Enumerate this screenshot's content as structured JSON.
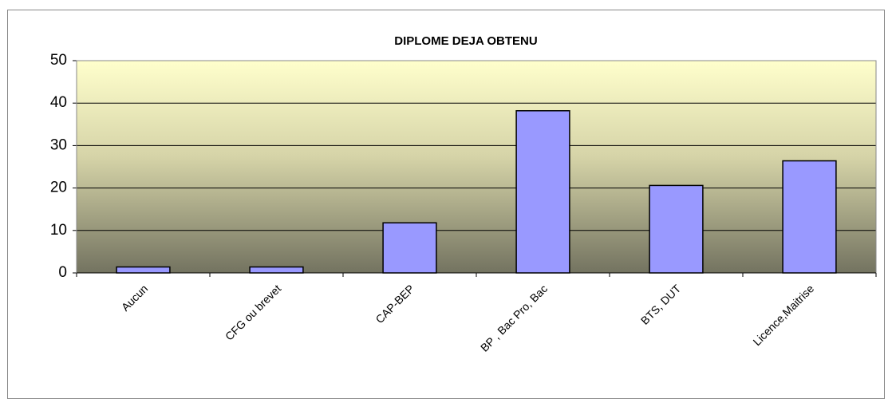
{
  "chart_data": {
    "type": "bar",
    "title": "DIPLOME DEJA OBTENU",
    "categories": [
      "Aucun",
      "CFG ou brevet",
      "CAP-BEP",
      "BP , Bac Pro, Bac",
      "BTS, DUT",
      "Licence,Maitrise"
    ],
    "values": [
      1.4,
      1.4,
      11.8,
      38.2,
      20.6,
      26.4
    ],
    "color": "#9999ff",
    "ylim": [
      0,
      50
    ],
    "yticks": [
      0,
      10,
      20,
      30,
      40,
      50
    ],
    "grid": true
  }
}
